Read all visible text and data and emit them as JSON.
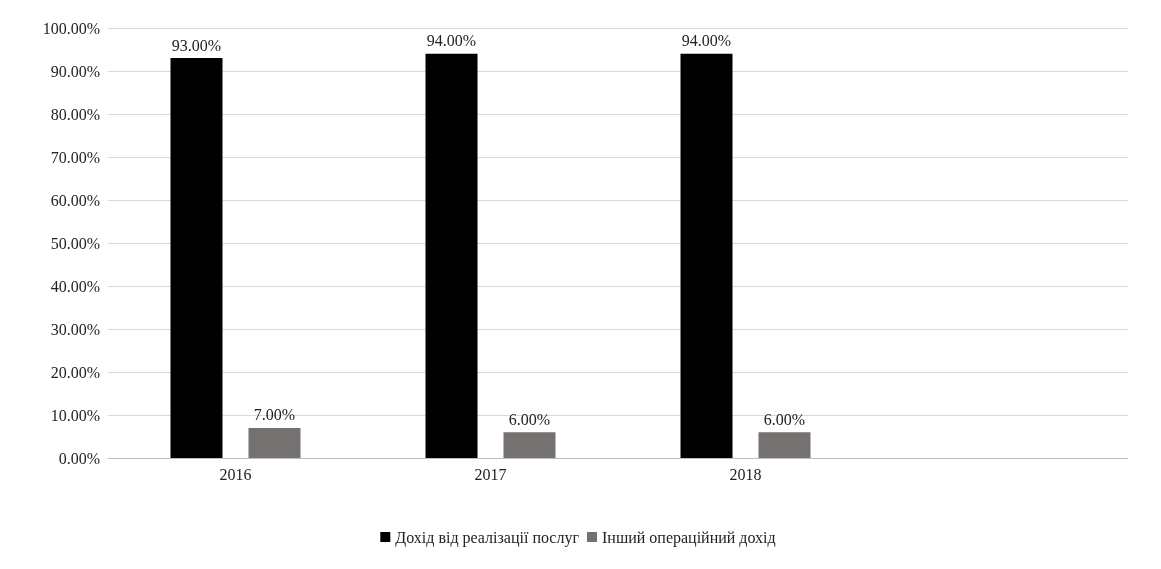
{
  "chart_data": {
    "type": "bar",
    "categories": [
      "2016",
      "2017",
      "2018",
      null
    ],
    "series": [
      {
        "name": "Дохід від реалізації послуг",
        "color": "#000000",
        "values": [
          93,
          94,
          94,
          null
        ],
        "value_labels": [
          "93.00%",
          "94.00%",
          "94.00%",
          null
        ]
      },
      {
        "name": "Інший операційний дохід",
        "color": "#767171",
        "values": [
          7,
          6,
          6,
          null
        ],
        "value_labels": [
          "7.00%",
          "6.00%",
          "6.00%",
          null
        ]
      }
    ],
    "ylim": [
      0,
      100
    ],
    "yticks": [
      {
        "value": 0,
        "label": "0.00%"
      },
      {
        "value": 10,
        "label": "10.00%"
      },
      {
        "value": 20,
        "label": "20.00%"
      },
      {
        "value": 30,
        "label": "30.00%"
      },
      {
        "value": 40,
        "label": "40.00%"
      },
      {
        "value": 50,
        "label": "50.00%"
      },
      {
        "value": 60,
        "label": "60.00%"
      },
      {
        "value": 70,
        "label": "70.00%"
      },
      {
        "value": 80,
        "label": "80.00%"
      },
      {
        "value": 90,
        "label": "90.00%"
      },
      {
        "value": 100,
        "label": "100.00%"
      }
    ],
    "grid": "y",
    "legend": "bottom"
  }
}
